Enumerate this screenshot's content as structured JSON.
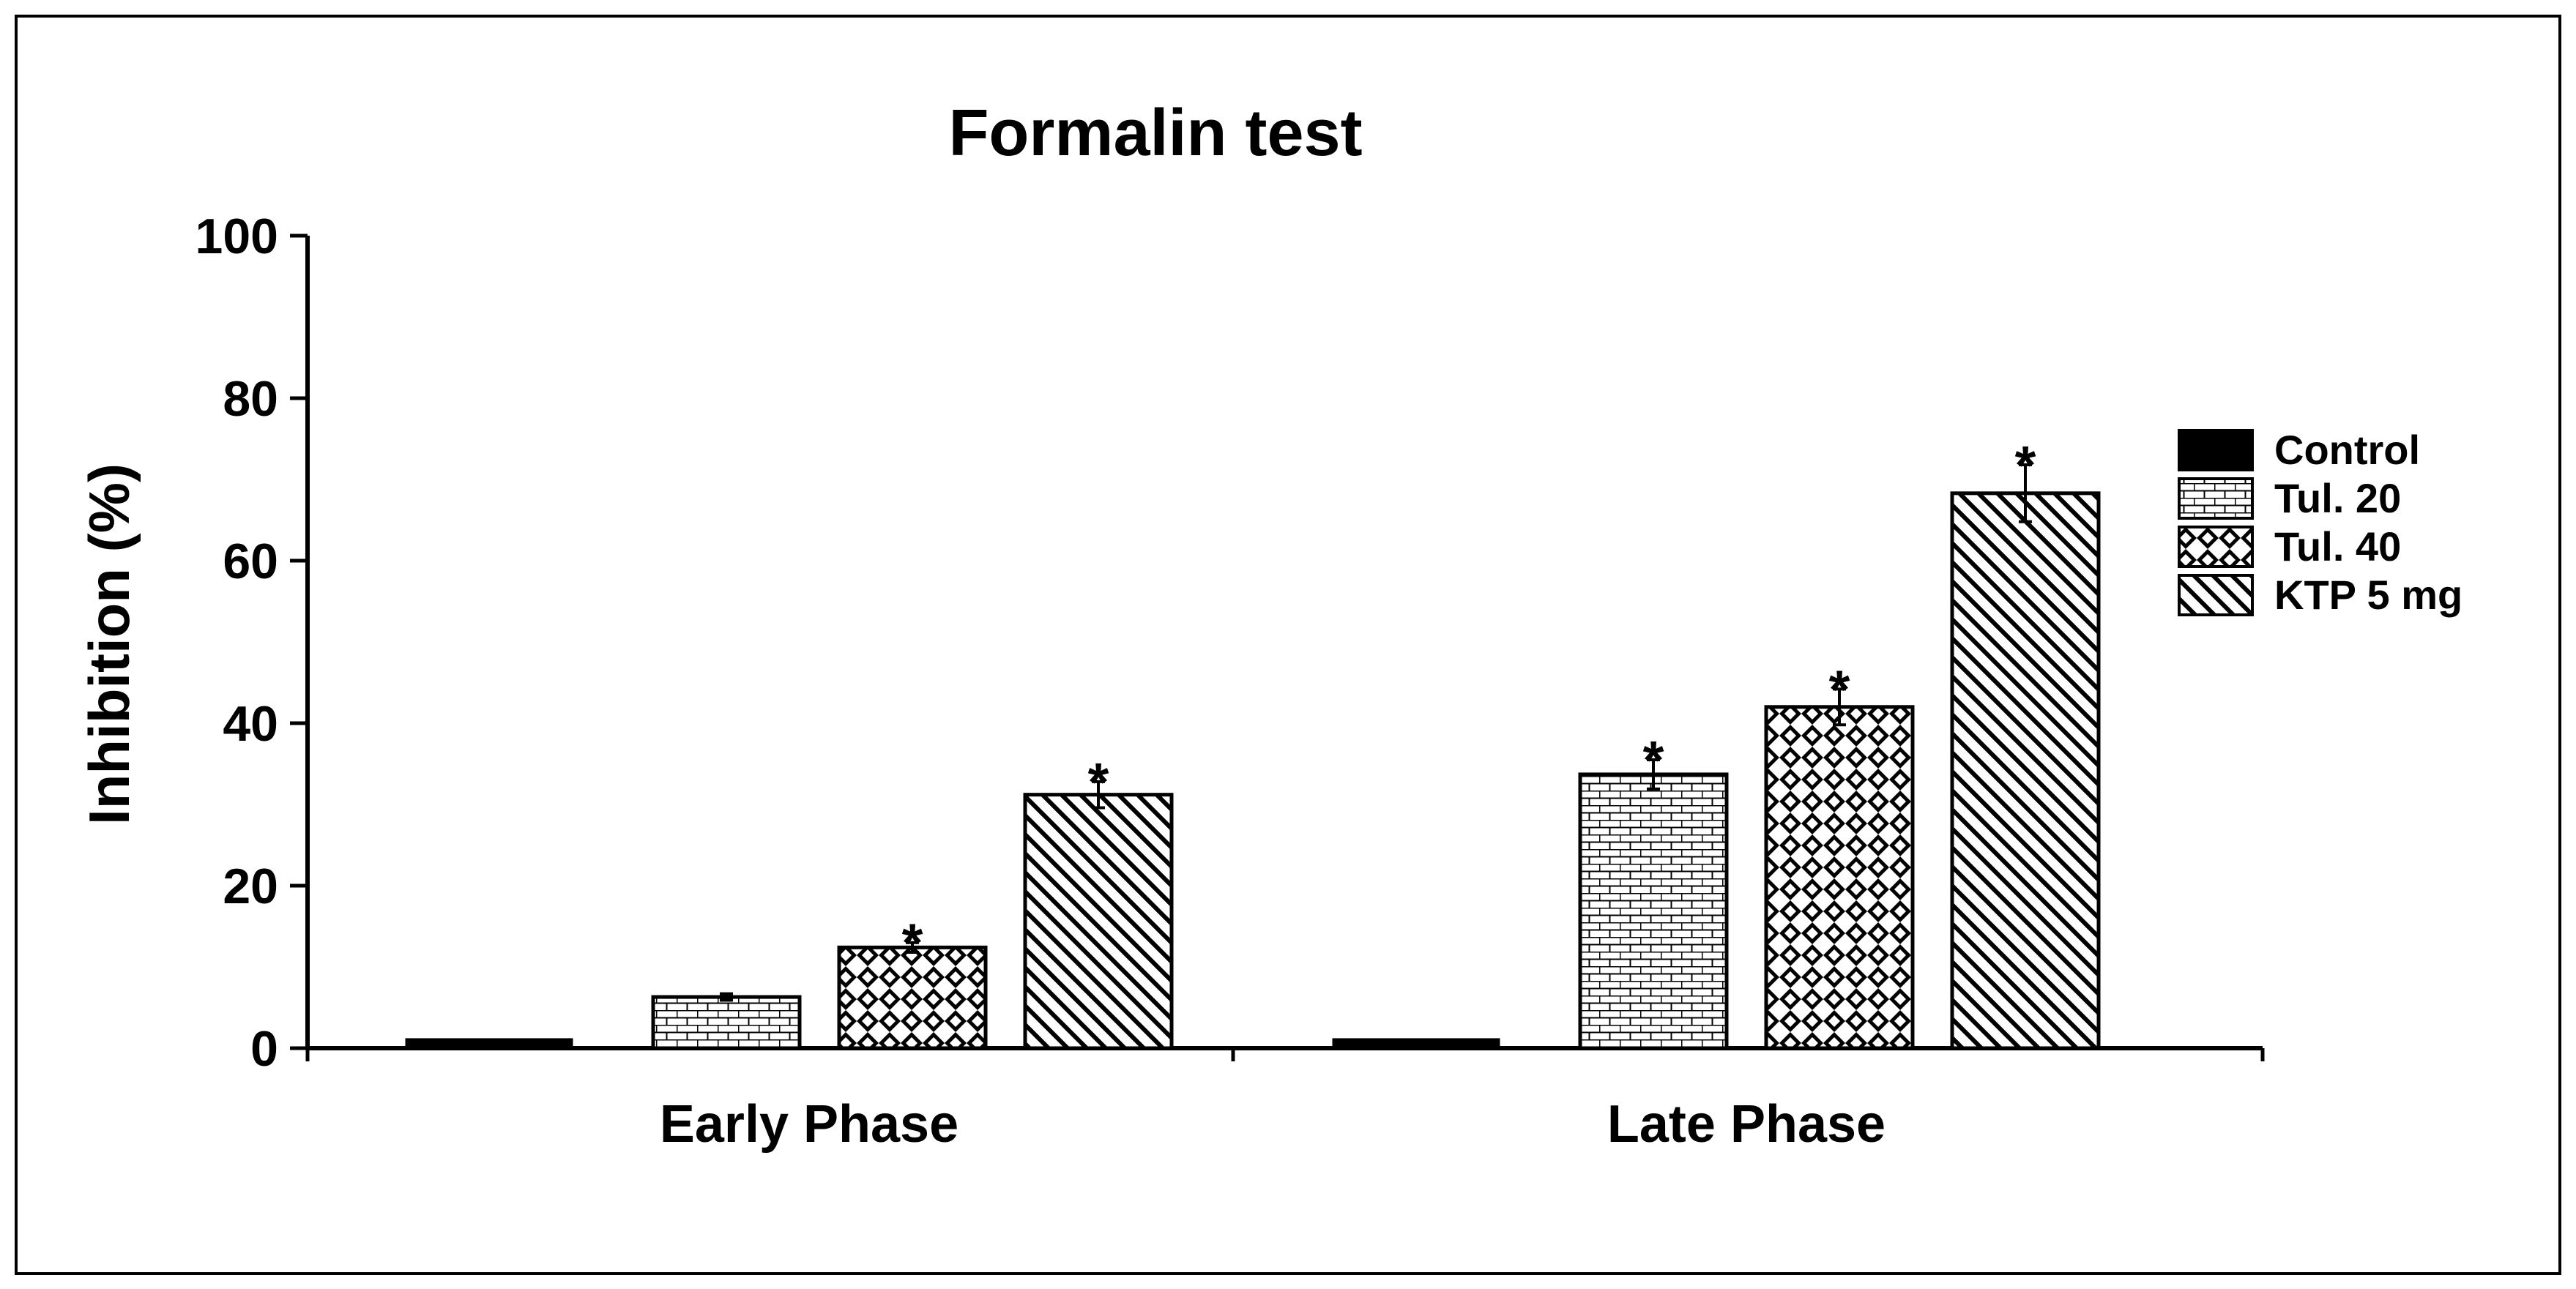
{
  "chart_data": {
    "type": "bar",
    "title": "Formalin test",
    "xlabel": "",
    "ylabel": "Inhibition (%)",
    "ylim": [
      0,
      100
    ],
    "yticks": [
      0,
      20,
      40,
      60,
      80,
      100
    ],
    "categories": [
      "Early Phase",
      "Late Phase"
    ],
    "legend_position": "right",
    "significance_marker": "*",
    "series": [
      {
        "name": "Control",
        "pattern": "solid",
        "values": [
          1,
          1
        ],
        "errors": [
          0,
          0
        ],
        "significant": [
          false,
          false
        ]
      },
      {
        "name": "Tul. 20",
        "pattern": "brick",
        "values": [
          6.3,
          33.7
        ],
        "errors": [
          0.4,
          1.8
        ],
        "significant": [
          false,
          true
        ]
      },
      {
        "name": "Tul. 40",
        "pattern": "checker",
        "values": [
          12.4,
          42
        ],
        "errors": [
          0.6,
          2.2
        ],
        "significant": [
          true,
          true
        ]
      },
      {
        "name": "KTP 5 mg",
        "pattern": "diagonal",
        "values": [
          31.2,
          68.3
        ],
        "errors": [
          1.6,
          3.5
        ],
        "significant": [
          true,
          true
        ]
      }
    ]
  }
}
